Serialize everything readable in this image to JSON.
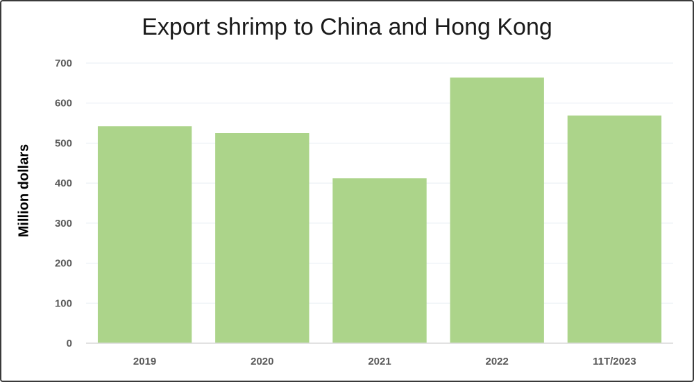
{
  "chart_data": {
    "type": "bar",
    "title": "Export shrimp to China and Hong Kong",
    "xlabel": "",
    "ylabel": "Million dollars",
    "categories": [
      "2019",
      "2020",
      "2021",
      "2022",
      "11T/2023"
    ],
    "values": [
      542,
      525,
      412,
      664,
      569
    ],
    "ylim": [
      0,
      700
    ],
    "yticks": [
      0,
      100,
      200,
      300,
      400,
      500,
      600,
      700
    ],
    "grid": true,
    "bar_color": "#acd48a",
    "grid_color": "#e7eef3",
    "axis_color": "#d9d9d9"
  }
}
